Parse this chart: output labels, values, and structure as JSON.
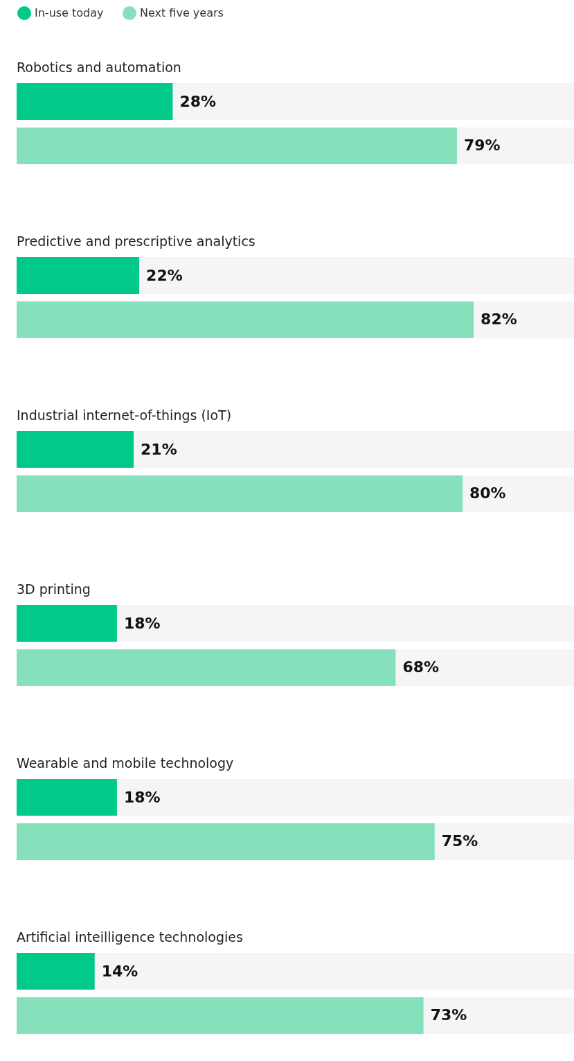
{
  "chart_data": {
    "type": "bar",
    "orientation": "horizontal",
    "categories": [
      "Robotics and automation",
      "Predictive and prescriptive analytics",
      "Industrial internet-of-things (IoT)",
      "3D printing",
      "Wearable and mobile technology",
      "Artificial inteilligence technologies"
    ],
    "series": [
      {
        "name": "In-use today",
        "color": "#00c98a",
        "values": [
          28,
          22,
          21,
          18,
          18,
          14
        ],
        "value_labels": [
          "28%",
          "22%",
          "21%",
          "18%",
          "18%",
          "14%"
        ]
      },
      {
        "name": "Next five years",
        "color": "#86e0bb",
        "values": [
          79,
          82,
          80,
          68,
          75,
          73
        ],
        "value_labels": [
          "79%",
          "82%",
          "80%",
          "68%",
          "75%",
          "73%"
        ]
      }
    ],
    "xlim": [
      0,
      100
    ],
    "legend": "top left",
    "grid": false,
    "tick_labels": false
  }
}
